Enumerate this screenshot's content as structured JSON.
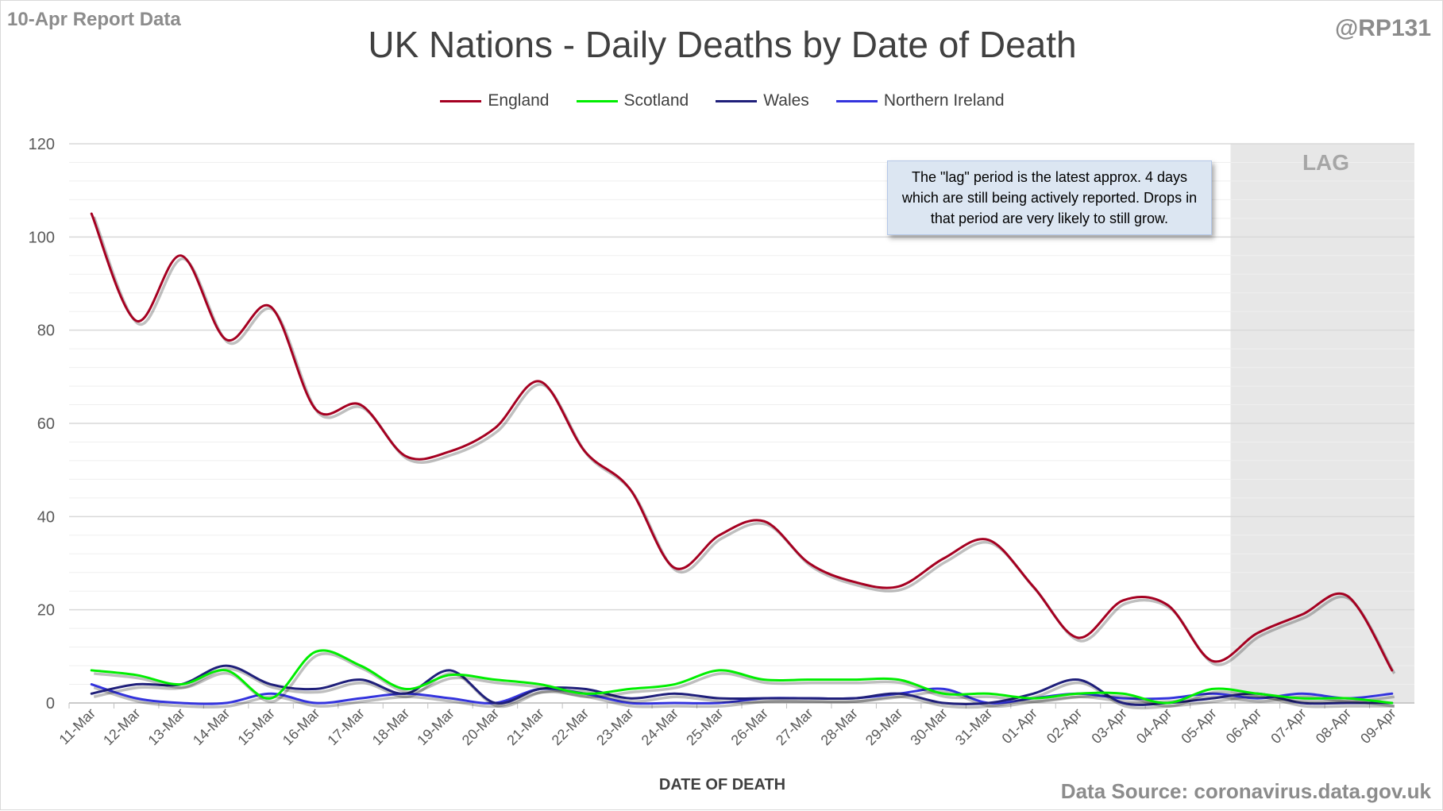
{
  "header": {
    "report_tag": "10-Apr Report Data",
    "handle": "@RP131",
    "title": "UK Nations - Daily Deaths by Date of Death",
    "source": "Data Source: coronavirus.data.gov.uk"
  },
  "annotation": {
    "text": "The \"lag\" period is the latest approx. 4 days which are still being actively reported. Drops in that period are very likely to still grow.",
    "lag_label": "LAG"
  },
  "chart_data": {
    "type": "line",
    "title": "UK Nations - Daily Deaths by Date of Death",
    "xlabel": "DATE OF DEATH",
    "ylabel": "",
    "ylim": [
      0,
      120
    ],
    "yticks": [
      0,
      20,
      40,
      60,
      80,
      100,
      120
    ],
    "grid": true,
    "legend_position": "top",
    "shaded_region": {
      "label": "LAG",
      "from": "06-Apr",
      "to": "09-Apr",
      "color": "#e7e7e7"
    },
    "categories": [
      "11-Mar",
      "12-Mar",
      "13-Mar",
      "14-Mar",
      "15-Mar",
      "16-Mar",
      "17-Mar",
      "18-Mar",
      "19-Mar",
      "20-Mar",
      "21-Mar",
      "22-Mar",
      "23-Mar",
      "24-Mar",
      "25-Mar",
      "26-Mar",
      "27-Mar",
      "28-Mar",
      "29-Mar",
      "30-Mar",
      "31-Mar",
      "01-Apr",
      "02-Apr",
      "03-Apr",
      "04-Apr",
      "05-Apr",
      "06-Apr",
      "07-Apr",
      "08-Apr",
      "09-Apr"
    ],
    "series": [
      {
        "name": "England",
        "color": "#a50021",
        "values": [
          105,
          82,
          96,
          78,
          85,
          63,
          64,
          53,
          54,
          59,
          69,
          54,
          46,
          29,
          36,
          39,
          30,
          26,
          25,
          31,
          35,
          25,
          14,
          22,
          21,
          9,
          15,
          19,
          23,
          7
        ]
      },
      {
        "name": "Scotland",
        "color": "#00ee00",
        "values": [
          7,
          6,
          4,
          7,
          1,
          11,
          8,
          3,
          6,
          5,
          4,
          2,
          3,
          4,
          7,
          5,
          5,
          5,
          5,
          2,
          2,
          1,
          2,
          2,
          0,
          3,
          2,
          1,
          1,
          0
        ]
      },
      {
        "name": "Wales",
        "color": "#1f1f7a",
        "values": [
          2,
          4,
          4,
          8,
          4,
          3,
          5,
          2,
          7,
          0,
          3,
          3,
          1,
          2,
          1,
          1,
          1,
          1,
          2,
          0,
          0,
          2,
          5,
          0,
          0,
          1,
          2,
          0,
          0,
          0
        ]
      },
      {
        "name": "Northern Ireland",
        "color": "#3333dd",
        "values": [
          4,
          1,
          0,
          0,
          2,
          0,
          1,
          2,
          1,
          0,
          3,
          2,
          0,
          0,
          0,
          1,
          1,
          1,
          2,
          3,
          0,
          1,
          2,
          1,
          1,
          2,
          1,
          2,
          1,
          2
        ]
      }
    ]
  }
}
